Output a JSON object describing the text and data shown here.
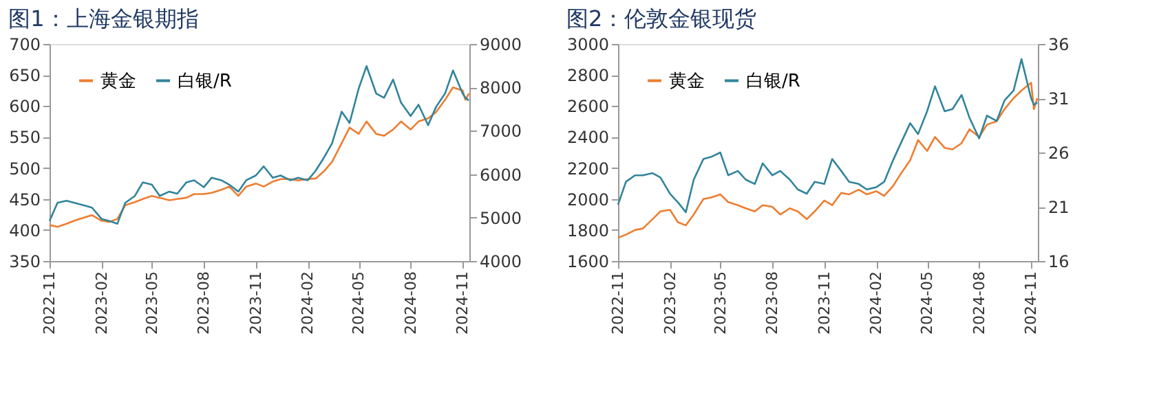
{
  "chart_data": [
    {
      "type": "line",
      "title": "图1：上海金银期指",
      "legend": "top left",
      "xlim": [
        "2022-11-01",
        "2024-11-13"
      ],
      "xticks": [
        "2022-11",
        "2023-02",
        "2023-05",
        "2023-08",
        "2023-11",
        "2024-02",
        "2024-05",
        "2024-08",
        "2024-11"
      ],
      "ylim": [
        350,
        700
      ],
      "yticks": [
        350,
        400,
        450,
        500,
        550,
        600,
        650,
        700
      ],
      "y2lim": [
        4000,
        9000
      ],
      "y2ticks": [
        4000,
        5000,
        6000,
        7000,
        8000,
        9000
      ],
      "x": [
        "2022-11-01",
        "2022-11-15",
        "2022-12-01",
        "2022-12-15",
        "2023-01-01",
        "2023-01-15",
        "2023-02-01",
        "2023-02-15",
        "2023-03-01",
        "2023-03-15",
        "2023-04-01",
        "2023-04-15",
        "2023-05-01",
        "2023-05-15",
        "2023-06-01",
        "2023-06-15",
        "2023-07-01",
        "2023-07-15",
        "2023-08-01",
        "2023-08-15",
        "2023-09-01",
        "2023-09-15",
        "2023-10-01",
        "2023-10-15",
        "2023-11-01",
        "2023-11-15",
        "2023-12-01",
        "2023-12-15",
        "2024-01-01",
        "2024-01-15",
        "2024-02-01",
        "2024-02-15",
        "2024-03-01",
        "2024-03-15",
        "2024-04-01",
        "2024-04-15",
        "2024-05-01",
        "2024-05-15",
        "2024-06-01",
        "2024-06-15",
        "2024-07-01",
        "2024-07-15",
        "2024-08-01",
        "2024-08-15",
        "2024-09-01",
        "2024-09-15",
        "2024-10-01",
        "2024-10-15",
        "2024-11-01",
        "2024-11-06",
        "2024-11-12"
      ],
      "series": [
        {
          "name": "黄金",
          "color": "#ed7d31",
          "values": [
            408,
            405,
            410,
            415,
            420,
            424,
            415,
            413,
            418,
            440,
            445,
            450,
            455,
            452,
            448,
            450,
            452,
            458,
            458,
            460,
            465,
            470,
            455,
            470,
            475,
            470,
            478,
            482,
            482,
            480,
            482,
            483,
            495,
            510,
            540,
            565,
            555,
            575,
            555,
            552,
            562,
            575,
            562,
            575,
            580,
            590,
            610,
            630,
            625,
            610,
            620
          ]
        },
        {
          "name": "白银/R",
          "color": "#31849b",
          "axis": "y2",
          "values": [
            4920,
            5340,
            5390,
            5340,
            5280,
            5230,
            4970,
            4920,
            4860,
            5340,
            5500,
            5810,
            5760,
            5500,
            5600,
            5550,
            5810,
            5860,
            5700,
            5920,
            5860,
            5760,
            5600,
            5860,
            5970,
            6180,
            5920,
            5970,
            5860,
            5920,
            5860,
            6080,
            6390,
            6710,
            7440,
            7180,
            7970,
            8490,
            7860,
            7760,
            8180,
            7650,
            7340,
            7600,
            7130,
            7550,
            7860,
            8390,
            7860,
            7760,
            7700
          ]
        }
      ]
    },
    {
      "type": "line",
      "title": "图2：伦敦金银现货",
      "legend": "top left",
      "xlim": [
        "2022-11-01",
        "2024-11-13"
      ],
      "xticks": [
        "2022-11",
        "2023-02",
        "2023-05",
        "2023-08",
        "2023-11",
        "2024-02",
        "2024-05",
        "2024-08",
        "2024-11"
      ],
      "ylim": [
        1600,
        3000
      ],
      "yticks": [
        1600,
        1800,
        2000,
        2200,
        2400,
        2600,
        2800,
        3000
      ],
      "y2lim": [
        16,
        36
      ],
      "y2ticks": [
        16,
        21,
        26,
        31,
        36
      ],
      "x": [
        "2022-11-01",
        "2022-11-15",
        "2022-12-01",
        "2022-12-15",
        "2023-01-01",
        "2023-01-15",
        "2023-02-01",
        "2023-02-15",
        "2023-03-01",
        "2023-03-15",
        "2023-04-01",
        "2023-04-15",
        "2023-05-01",
        "2023-05-15",
        "2023-06-01",
        "2023-06-15",
        "2023-07-01",
        "2023-07-15",
        "2023-08-01",
        "2023-08-15",
        "2023-09-01",
        "2023-09-15",
        "2023-10-01",
        "2023-10-15",
        "2023-11-01",
        "2023-11-15",
        "2023-12-01",
        "2023-12-15",
        "2024-01-01",
        "2024-01-15",
        "2024-02-01",
        "2024-02-15",
        "2024-03-01",
        "2024-03-15",
        "2024-04-01",
        "2024-04-15",
        "2024-05-01",
        "2024-05-15",
        "2024-06-01",
        "2024-06-15",
        "2024-07-01",
        "2024-07-15",
        "2024-08-01",
        "2024-08-15",
        "2024-09-01",
        "2024-09-15",
        "2024-10-01",
        "2024-10-15",
        "2024-11-01",
        "2024-11-06",
        "2024-11-12"
      ],
      "series": [
        {
          "name": "黄金",
          "color": "#ed7d31",
          "values": [
            1750,
            1770,
            1800,
            1810,
            1870,
            1920,
            1930,
            1850,
            1830,
            1900,
            2000,
            2010,
            2030,
            1980,
            1960,
            1940,
            1920,
            1960,
            1950,
            1900,
            1940,
            1920,
            1870,
            1920,
            1990,
            1960,
            2040,
            2030,
            2060,
            2030,
            2050,
            2020,
            2080,
            2160,
            2250,
            2380,
            2310,
            2400,
            2330,
            2320,
            2360,
            2450,
            2400,
            2480,
            2500,
            2580,
            2650,
            2700,
            2750,
            2580,
            2650
          ]
        },
        {
          "name": "白银/R",
          "color": "#31849b",
          "axis": "y2",
          "values": [
            21.2,
            23.3,
            23.9,
            23.9,
            24.1,
            23.7,
            22.2,
            21.4,
            20.5,
            23.5,
            25.4,
            25.6,
            26.0,
            23.9,
            24.3,
            23.5,
            23.1,
            25.0,
            23.9,
            24.3,
            23.5,
            22.6,
            22.2,
            23.3,
            23.1,
            25.4,
            24.3,
            23.3,
            23.1,
            22.6,
            22.8,
            23.3,
            25.2,
            26.8,
            28.7,
            27.7,
            29.8,
            32.1,
            29.8,
            30.0,
            31.3,
            29.2,
            27.3,
            29.4,
            28.9,
            30.8,
            31.7,
            34.6,
            31.0,
            30.4,
            30.6
          ]
        }
      ]
    }
  ]
}
